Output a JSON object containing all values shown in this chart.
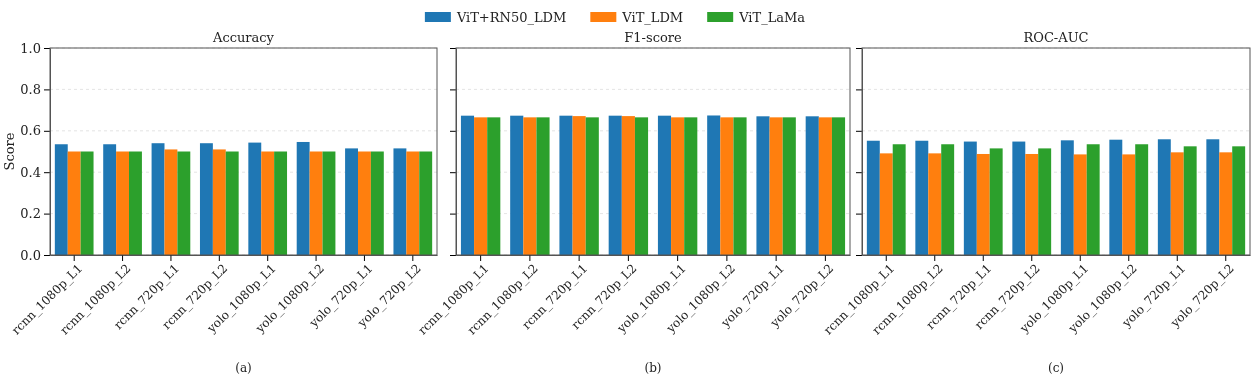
{
  "chart_data": [
    {
      "type": "bar",
      "title": "Accuracy",
      "ylabel": "Score",
      "categories": [
        "rcnn_1080p_L1",
        "rcnn_1080p_L2",
        "rcnn_720p_L1",
        "rcnn_720p_L2",
        "yolo_1080p_L1",
        "yolo_1080p_L2",
        "yolo_720p_L1",
        "yolo_720p_L2"
      ],
      "series": [
        {
          "name": "ViT+RN50_LDM",
          "color": "#1f77b4",
          "values": [
            0.535,
            0.535,
            0.54,
            0.54,
            0.543,
            0.546,
            0.515,
            0.515
          ]
        },
        {
          "name": "ViT_LDM",
          "color": "#ff7f0e",
          "values": [
            0.5,
            0.5,
            0.51,
            0.51,
            0.5,
            0.5,
            0.5,
            0.5
          ]
        },
        {
          "name": "ViT_LaMa",
          "color": "#2ca02c",
          "values": [
            0.5,
            0.5,
            0.5,
            0.5,
            0.5,
            0.5,
            0.5,
            0.5
          ]
        }
      ],
      "ylim": [
        0,
        1
      ],
      "yticks": [
        {
          "value": 0,
          "label": "0.0"
        },
        0.2,
        0.4,
        0.6,
        0.8,
        {
          "value": 1,
          "label": "1.0"
        }
      ],
      "grid": "y",
      "legend": "top",
      "annotations": [
        "(a)"
      ]
    },
    {
      "type": "bar",
      "title": "F1-score",
      "categories": [
        "rcnn_1080p_L1",
        "rcnn_1080p_L2",
        "rcnn_720p_L1",
        "rcnn_720p_L2",
        "yolo_1080p_L1",
        "yolo_1080p_L2",
        "yolo_720p_L1",
        "yolo_720p_L2"
      ],
      "series": [
        {
          "color": "#1f77b4",
          "values": [
            0.673,
            0.673,
            0.673,
            0.673,
            0.673,
            0.674,
            0.67,
            0.67
          ]
        },
        {
          "color": "#ff7f0e",
          "values": [
            0.665,
            0.665,
            0.671,
            0.671,
            0.665,
            0.665,
            0.665,
            0.665
          ]
        },
        {
          "color": "#2ca02c",
          "values": [
            0.665,
            0.665,
            0.665,
            0.665,
            0.665,
            0.665,
            0.665,
            0.665
          ]
        }
      ],
      "ylim": [
        0,
        1
      ],
      "yticks": [
        {
          "value": 0,
          "label": null
        },
        {
          "value": 0.2,
          "label": null
        },
        {
          "value": 0.4,
          "label": null
        },
        {
          "value": 0.6,
          "label": null
        },
        {
          "value": 0.8,
          "label": null
        },
        {
          "value": 1,
          "label": null
        }
      ],
      "grid": "y",
      "tick_labels": "x",
      "annotations": [
        "(b)"
      ]
    },
    {
      "type": "bar",
      "title": "ROC-AUC",
      "categories": [
        "rcnn_1080p_L1",
        "rcnn_1080p_L2",
        "rcnn_720p_L1",
        "rcnn_720p_L2",
        "yolo_1080p_L1",
        "yolo_1080p_L2",
        "yolo_720p_L1",
        "yolo_720p_L2"
      ],
      "series": [
        {
          "color": "#1f77b4",
          "values": [
            0.552,
            0.552,
            0.548,
            0.548,
            0.554,
            0.557,
            0.559,
            0.559
          ]
        },
        {
          "color": "#ff7f0e",
          "values": [
            0.491,
            0.491,
            0.488,
            0.488,
            0.486,
            0.486,
            0.496,
            0.496
          ]
        },
        {
          "color": "#2ca02c",
          "values": [
            0.535,
            0.535,
            0.515,
            0.515,
            0.535,
            0.535,
            0.525,
            0.525
          ]
        }
      ],
      "ylim": [
        0,
        1
      ],
      "yticks": [
        {
          "value": 0,
          "label": null
        },
        {
          "value": 0.2,
          "label": null
        },
        {
          "value": 0.4,
          "label": null
        },
        {
          "value": 0.6,
          "label": null
        },
        {
          "value": 0.8,
          "label": null
        },
        {
          "value": 1,
          "label": null
        }
      ],
      "grid": "y",
      "tick_labels": "x",
      "annotations": [
        "(c)"
      ]
    }
  ]
}
